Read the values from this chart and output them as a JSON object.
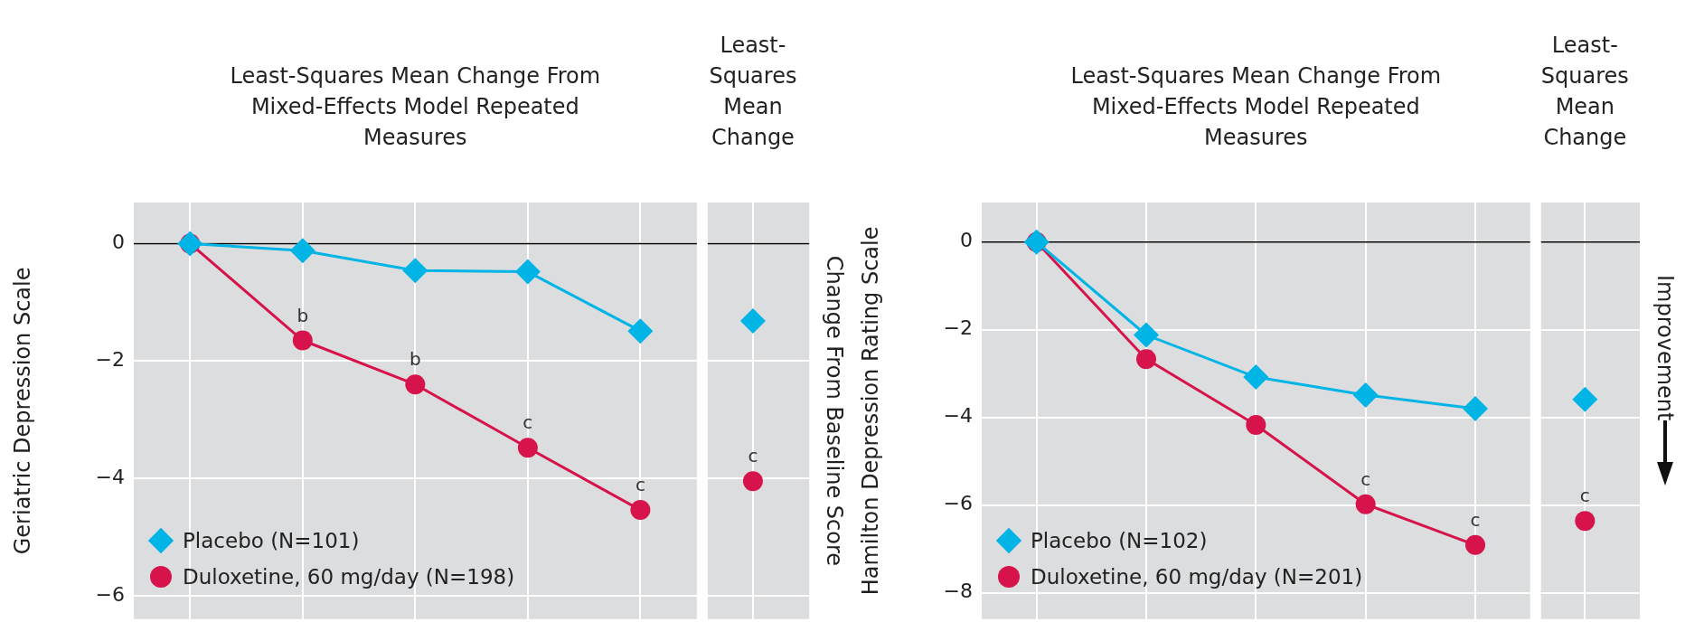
{
  "chart_data": [
    {
      "type": "line",
      "title": "Least-Squares Mean Change From Mixed-Effects Model Repeated Measures",
      "ylabel": "Geriatric Depression Scale",
      "y2label": "Change From Baseline Score",
      "annotations": [
        "Least-Squares Mean Change"
      ],
      "categories": [
        null,
        null,
        null,
        null,
        null,
        null
      ],
      "series": [
        {
          "name": "Placebo (N=101)",
          "color": "#00b4e6",
          "marker": "diamond",
          "values": [
            0,
            -0.12,
            -0.46,
            -0.48,
            -1.49,
            null
          ]
        },
        {
          "name": "Duloxetine, 60 mg/day (N=198)",
          "color": "#d6134b",
          "marker": "circle",
          "values": [
            0,
            -1.65,
            -2.4,
            -3.48,
            -4.54,
            null
          ],
          "value_labels": [
            null,
            "b",
            "b",
            "c",
            "c",
            null
          ]
        },
        {
          "type": "scatter",
          "color": "#00b4e6",
          "marker": "diamond",
          "values": [
            null,
            null,
            null,
            null,
            null,
            -1.32
          ]
        },
        {
          "type": "scatter",
          "color": "#d6134b",
          "marker": "circle",
          "values": [
            null,
            null,
            null,
            null,
            null,
            -4.05
          ],
          "value_labels": [
            null,
            null,
            null,
            null,
            null,
            "c"
          ]
        }
      ],
      "ylim": [
        -6.4,
        0.7
      ],
      "yticks": [
        0,
        -2,
        -4,
        -6
      ],
      "grid": true,
      "legend": "bottom left",
      "ref_lines": [
        {
          "axis": "y",
          "value": 0,
          "color": "#000000"
        }
      ]
    },
    {
      "type": "line",
      "title": "Least-Squares Mean Change From Mixed-Effects Model Repeated Measures",
      "ylabel": "Hamilton Depression Rating Scale",
      "annotations": [
        "Least-Squares Mean Change",
        "Improvement"
      ],
      "categories": [
        null,
        null,
        null,
        null,
        null,
        null
      ],
      "series": [
        {
          "name": "Placebo (N=102)",
          "color": "#00b4e6",
          "marker": "diamond",
          "values": [
            0,
            -2.12,
            -3.08,
            -3.49,
            -3.8,
            null
          ]
        },
        {
          "name": "Duloxetine, 60 mg/day (N=201)",
          "color": "#d6134b",
          "marker": "circle",
          "values": [
            0,
            -2.67,
            -4.17,
            -5.98,
            -6.91,
            null
          ],
          "value_labels": [
            null,
            null,
            null,
            "c",
            "c",
            null
          ]
        },
        {
          "type": "scatter",
          "color": "#00b4e6",
          "marker": "diamond",
          "values": [
            null,
            null,
            null,
            null,
            null,
            -3.59
          ]
        },
        {
          "type": "scatter",
          "color": "#d6134b",
          "marker": "circle",
          "values": [
            null,
            null,
            null,
            null,
            null,
            -6.36
          ],
          "value_labels": [
            null,
            null,
            null,
            null,
            null,
            "c"
          ]
        }
      ],
      "ylim": [
        -8.6,
        0.9
      ],
      "yticks": [
        0,
        -2,
        -4,
        -6,
        -8
      ],
      "grid": true,
      "legend": "bottom left",
      "ref_lines": [
        {
          "axis": "y",
          "value": 0,
          "color": "#000000"
        }
      ]
    }
  ]
}
